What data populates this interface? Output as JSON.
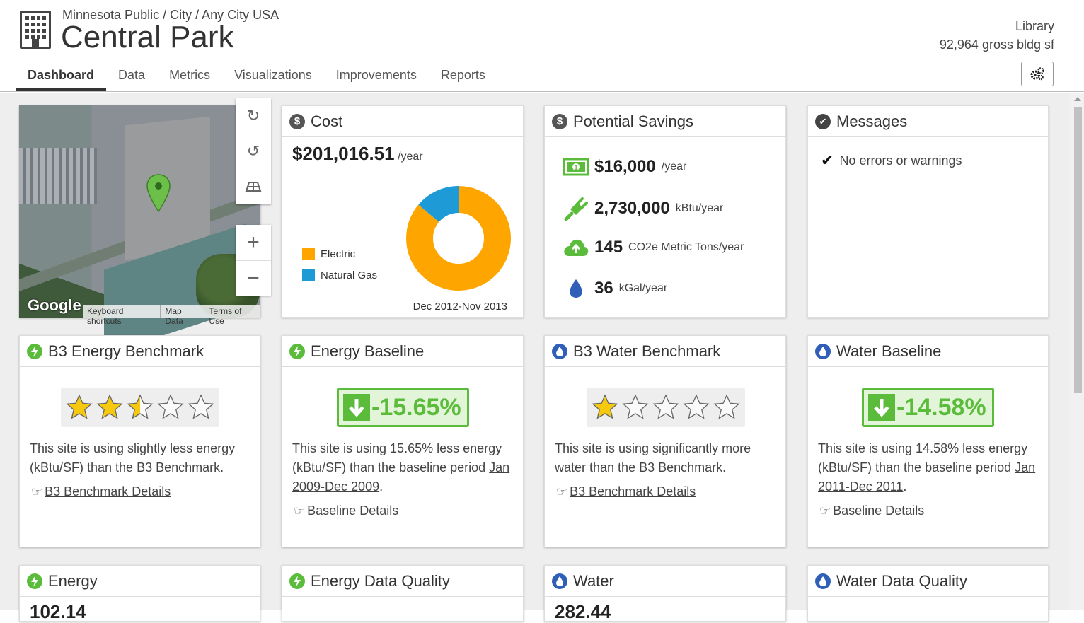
{
  "header": {
    "breadcrumb": "Minnesota Public / City / Any City USA",
    "title": "Central Park",
    "building_type": "Library",
    "building_area": "92,964 gross bldg sf"
  },
  "tabs": [
    "Dashboard",
    "Data",
    "Metrics",
    "Visualizations",
    "Improvements",
    "Reports"
  ],
  "map": {
    "logo": "Google",
    "footer": [
      "Keyboard shortcuts",
      "Map Data",
      "Terms of Use"
    ]
  },
  "cost": {
    "title": "Cost",
    "value": "$201,016.51",
    "unit": "/year",
    "period": "Dec 2012-Nov 2013",
    "chart_data": {
      "type": "pie",
      "categories": [
        "Electric",
        "Natural Gas"
      ],
      "values": [
        86,
        14
      ],
      "colors": [
        "#ffa500",
        "#1e9bd7"
      ],
      "legend_position": "left"
    }
  },
  "savings": {
    "title": "Potential Savings",
    "rows": [
      {
        "icon": "money-icon",
        "value": "$16,000",
        "unit": "/year"
      },
      {
        "icon": "plug-icon",
        "value": "2,730,000",
        "unit": "kBtu/year"
      },
      {
        "icon": "cloud-upload-icon",
        "value": "145",
        "unit": "CO2e Metric Tons/year"
      },
      {
        "icon": "water-drop-icon",
        "value": "36",
        "unit": "kGal/year"
      }
    ]
  },
  "messages": {
    "title": "Messages",
    "text": "No errors or warnings"
  },
  "cards": {
    "energy_benchmark": {
      "title": "B3 Energy Benchmark",
      "stars": 2.5,
      "desc": "This site is using slightly less energy (kBtu/SF) than the B3 Benchmark.",
      "link": "B3 Benchmark Details"
    },
    "energy_baseline": {
      "title": "Energy Baseline",
      "pct": "-15.65%",
      "desc_pre": "This site is using 15.65% less energy (kBtu/SF) than the baseline period ",
      "desc_link": "Jan 2009-Dec 2009",
      "desc_post": ".",
      "link": "Baseline Details"
    },
    "water_benchmark": {
      "title": "B3 Water Benchmark",
      "stars": 1,
      "desc": "This site is using significantly more water than the B3 Benchmark.",
      "link": "B3 Benchmark Details"
    },
    "water_baseline": {
      "title": "Water Baseline",
      "pct": "-14.58%",
      "desc_pre": "This site is using 14.58% less energy (kBtu/SF) than the baseline period ",
      "desc_link": "Jan 2011-Dec 2011",
      "desc_post": ".",
      "link": "Baseline Details"
    },
    "energy": {
      "title": "Energy",
      "value": "102.14"
    },
    "energy_dq": {
      "title": "Energy Data Quality"
    },
    "water": {
      "title": "Water",
      "value": "282.44"
    },
    "water_dq": {
      "title": "Water Data Quality"
    }
  },
  "colors": {
    "energy_green": "#5bbc3c",
    "water_blue": "#2f5fb8",
    "cost_gray": "#555555",
    "star_yellow": "#f6c90e"
  }
}
